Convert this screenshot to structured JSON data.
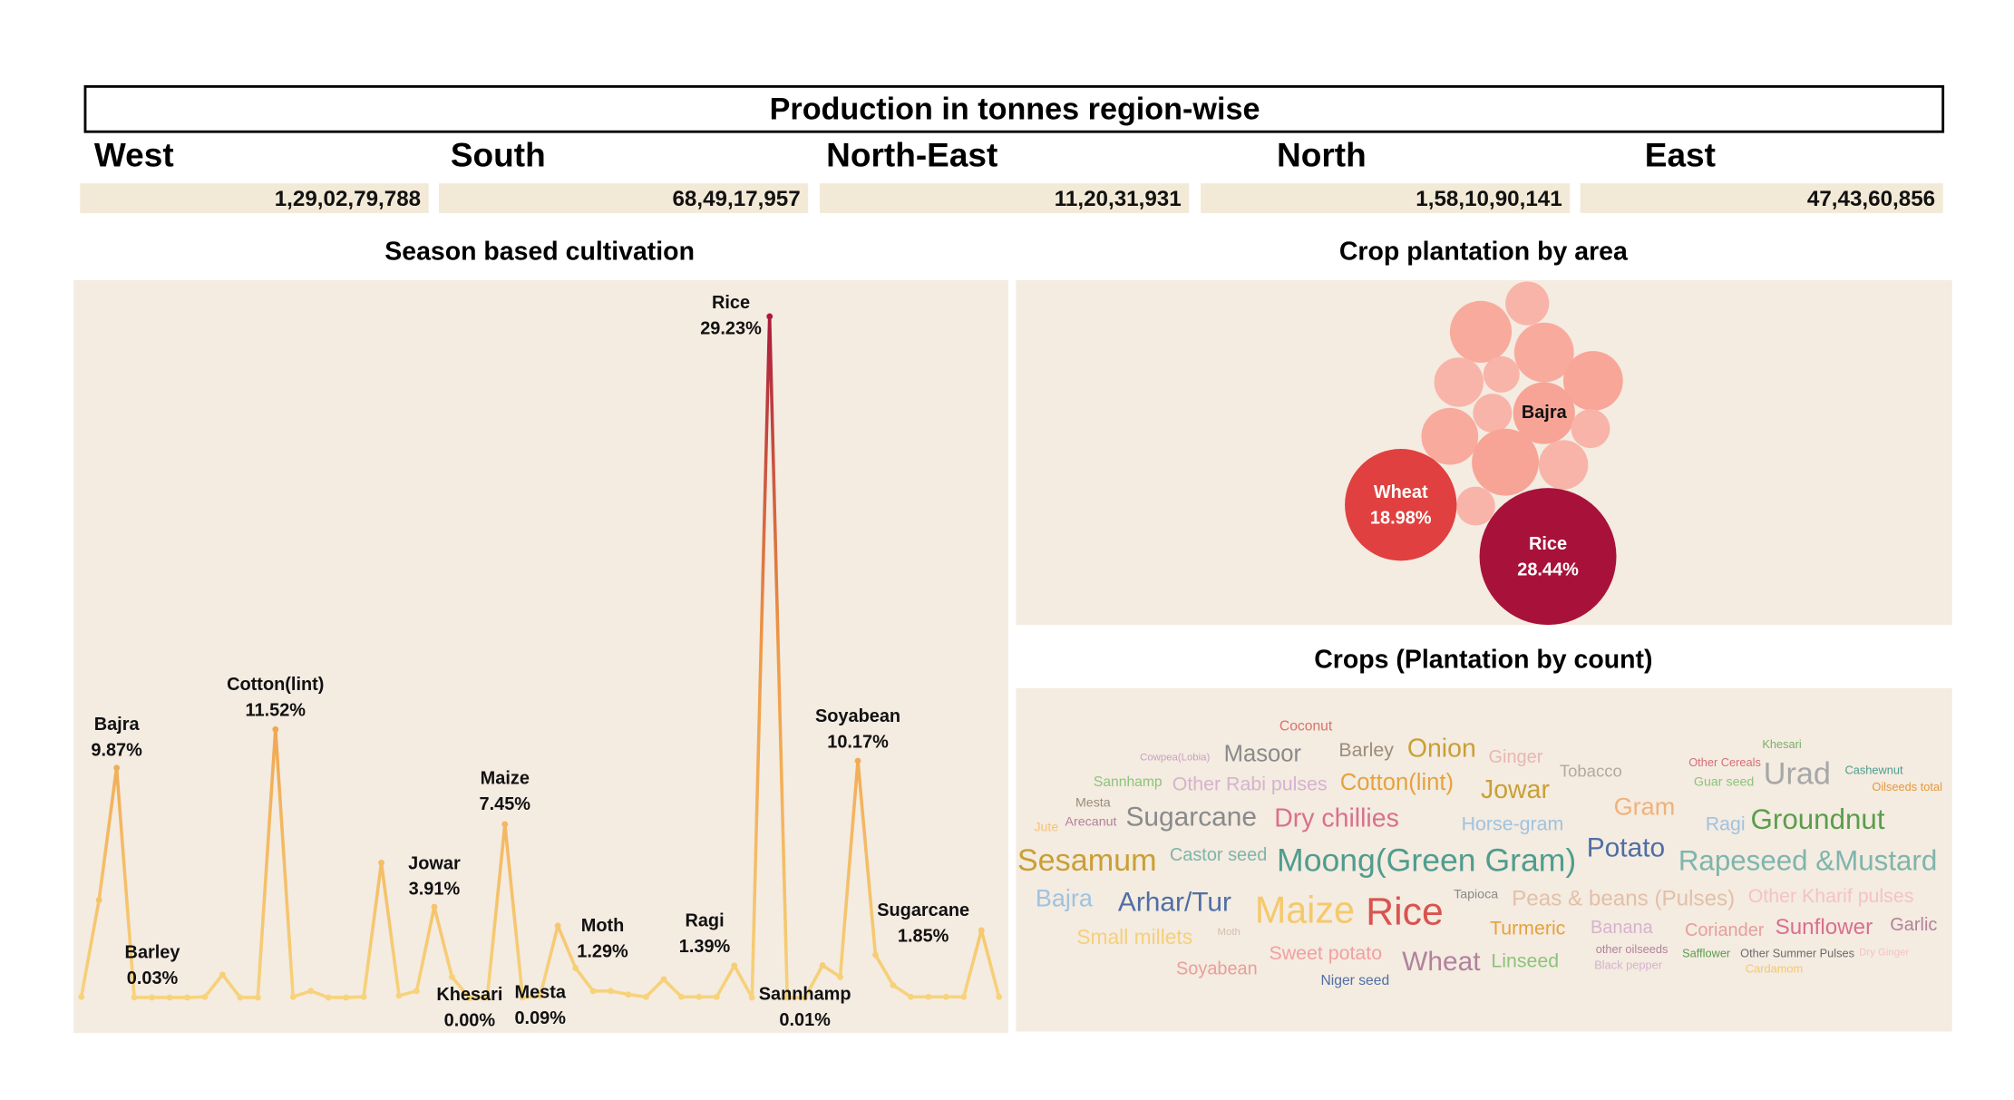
{
  "header": {
    "title": "Production in tonnes region-wise",
    "regions": [
      {
        "name": "West",
        "value": "1,29,02,79,788"
      },
      {
        "name": "South",
        "value": "68,49,17,957"
      },
      {
        "name": "North-East",
        "value": "11,20,31,931"
      },
      {
        "name": "North",
        "value": "1,58,10,90,141"
      },
      {
        "name": "East",
        "value": "47,43,60,856"
      }
    ]
  },
  "chart_data": [
    {
      "type": "line",
      "title": "Season based cultivation",
      "categories": [
        null,
        null,
        "Bajra",
        "Barley",
        null,
        null,
        null,
        null,
        null,
        null,
        null,
        "Cotton(lint)",
        null,
        null,
        null,
        null,
        null,
        null,
        null,
        null,
        "Jowar",
        null,
        "Khesari",
        null,
        "Maize",
        null,
        "Mesta",
        null,
        "Moth",
        null,
        null,
        null,
        null,
        null,
        null,
        null,
        null,
        "Ragi",
        null,
        "Rice",
        null,
        "Sannhamp",
        null,
        null,
        "Soyabean",
        "Sugarcane",
        null,
        null,
        null,
        null,
        null,
        null,
        null
      ],
      "values": [
        0.05,
        4.2,
        9.87,
        0.03,
        0.02,
        0.02,
        0.02,
        0.05,
        1.0,
        0.02,
        0.02,
        11.52,
        0.05,
        0.3,
        0.02,
        0.02,
        0.05,
        5.8,
        0.1,
        0.3,
        3.91,
        0.9,
        0.0,
        0.02,
        7.45,
        0.02,
        0.09,
        3.1,
        1.29,
        0.3,
        0.3,
        0.15,
        0.05,
        0.8,
        0.05,
        0.05,
        0.05,
        1.39,
        0.02,
        29.23,
        0.02,
        0.01,
        1.4,
        0.9,
        10.17,
        1.85,
        0.55,
        0.05,
        0.05,
        0.05,
        0.05,
        2.9,
        0.05
      ],
      "value_labels": [
        null,
        null,
        "9.87%",
        "0.03%",
        null,
        null,
        null,
        null,
        null,
        null,
        null,
        "11.52%",
        null,
        null,
        null,
        null,
        null,
        null,
        null,
        null,
        "3.91%",
        null,
        "0.00%",
        null,
        "7.45%",
        null,
        "0.09%",
        null,
        "1.29%",
        null,
        null,
        null,
        null,
        null,
        null,
        null,
        null,
        "1.39%",
        null,
        "29.23%",
        null,
        "0.01%",
        null,
        null,
        "10.17%",
        "1.85%",
        null,
        null,
        null,
        null,
        null,
        null,
        null
      ],
      "ylim": [
        0,
        30
      ],
      "color_range": [
        "#f7d37b",
        "#ef9a45",
        "#a8123a"
      ]
    },
    {
      "type": "bubble",
      "title": "Crop plantation by area",
      "categories": [
        null,
        null,
        null,
        null,
        null,
        null,
        "Bajra",
        null,
        null,
        null,
        null,
        null,
        null,
        "Wheat",
        "Rice"
      ],
      "values": [
        2.9,
        5.8,
        5.4,
        5.4,
        3.7,
        2.0,
        5.8,
        2.3,
        2.3,
        4.9,
        6.8,
        3.7,
        2.3,
        18.98,
        28.44
      ],
      "value_labels": [
        null,
        null,
        null,
        null,
        null,
        null,
        null,
        null,
        null,
        null,
        null,
        null,
        null,
        "18.98%",
        "28.44%"
      ],
      "colors": [
        "#f8b4a8",
        "#f8aa9d",
        "#f8aa9d",
        "#f8a698",
        "#f8b4a8",
        "#f8b4a8",
        "#f7a496",
        "#f8b4a8",
        "#f8b4a8",
        "#f8aa9d",
        "#f7a496",
        "#f8b4a8",
        "#f8b4a8",
        "#e0403f",
        "#a8123a"
      ]
    },
    {
      "type": "wordcloud",
      "title": "Crops (Plantation by count)",
      "words": [
        {
          "text": "Coconut",
          "value": 110,
          "color": "#d9736b"
        },
        {
          "text": "Cowpea(Lobia)",
          "value": 80,
          "color": "#c7a3c0"
        },
        {
          "text": "Masoor",
          "value": 180,
          "color": "#8a8a8a"
        },
        {
          "text": "Barley",
          "value": 150,
          "color": "#9c8d7a"
        },
        {
          "text": "Onion",
          "value": 200,
          "color": "#c9a035"
        },
        {
          "text": "Ginger",
          "value": 140,
          "color": "#e7b8b0"
        },
        {
          "text": "Tobacco",
          "value": 130,
          "color": "#b3a9a0"
        },
        {
          "text": "Other Cereals",
          "value": 90,
          "color": "#d46f78"
        },
        {
          "text": "Khesari",
          "value": 90,
          "color": "#7bb069"
        },
        {
          "text": "Cashewnut",
          "value": 90,
          "color": "#4f9d8e"
        },
        {
          "text": "Urad",
          "value": 240,
          "color": "#a7a7a7"
        },
        {
          "text": "Guar seed",
          "value": 100,
          "color": "#8cc47a"
        },
        {
          "text": "Oilseeds total",
          "value": 90,
          "color": "#e49a3b"
        },
        {
          "text": "Sannhamp",
          "value": 110,
          "color": "#8cc47a"
        },
        {
          "text": "Other Rabi pulses",
          "value": 150,
          "color": "#d5b3ce"
        },
        {
          "text": "Cotton(lint)",
          "value": 180,
          "color": "#e6a23c"
        },
        {
          "text": "Jowar",
          "value": 200,
          "color": "#c9a035"
        },
        {
          "text": "Mesta",
          "value": 100,
          "color": "#9c8d7a"
        },
        {
          "text": "Gram",
          "value": 190,
          "color": "#f0b27a"
        },
        {
          "text": "Jute",
          "value": 100,
          "color": "#f5c27a"
        },
        {
          "text": "Arecanut",
          "value": 100,
          "color": "#b1829c"
        },
        {
          "text": "Sugarcane",
          "value": 210,
          "color": "#8a8a8a"
        },
        {
          "text": "Dry chillies",
          "value": 200,
          "color": "#d9708c"
        },
        {
          "text": "Horse-gram",
          "value": 150,
          "color": "#9fc3e0"
        },
        {
          "text": "Ragi",
          "value": 150,
          "color": "#9fc3e0"
        },
        {
          "text": "Groundnut",
          "value": 220,
          "color": "#5a9e4b"
        },
        {
          "text": "Sesamum",
          "value": 240,
          "color": "#c9a035"
        },
        {
          "text": "Castor seed",
          "value": 140,
          "color": "#7fb5ad"
        },
        {
          "text": "Moong(Green Gram)",
          "value": 250,
          "color": "#4f9d8e"
        },
        {
          "text": "Potato",
          "value": 210,
          "color": "#4e6fa3"
        },
        {
          "text": "Rapeseed &Mustard",
          "value": 220,
          "color": "#7fb5ad"
        },
        {
          "text": "Bajra",
          "value": 190,
          "color": "#9fc3e0"
        },
        {
          "text": "Arhar/Tur",
          "value": 210,
          "color": "#4e6fa3"
        },
        {
          "text": "Maize",
          "value": 290,
          "color": "#f5c96a"
        },
        {
          "text": "Rice",
          "value": 300,
          "color": "#d9534f"
        },
        {
          "text": "Tapioca",
          "value": 100,
          "color": "#8a8a8a"
        },
        {
          "text": "Peas & beans (Pulses)",
          "value": 170,
          "color": "#e2c0a8"
        },
        {
          "text": "Other Kharif pulses",
          "value": 150,
          "color": "#f4c3c4"
        },
        {
          "text": "Small millets",
          "value": 160,
          "color": "#f5d07a"
        },
        {
          "text": "Moth",
          "value": 80,
          "color": "#d4c0b0"
        },
        {
          "text": "Turmeric",
          "value": 150,
          "color": "#e6a23c"
        },
        {
          "text": "Banana",
          "value": 140,
          "color": "#d5b3ce"
        },
        {
          "text": "Coriander",
          "value": 140,
          "color": "#e89f9b"
        },
        {
          "text": "Sunflower",
          "value": 170,
          "color": "#d9708c"
        },
        {
          "text": "Garlic",
          "value": 140,
          "color": "#b1829c"
        },
        {
          "text": "other oilseeds",
          "value": 90,
          "color": "#b1829c"
        },
        {
          "text": "Safflower",
          "value": 90,
          "color": "#5a9e4b"
        },
        {
          "text": "Other Summer Pulses",
          "value": 90,
          "color": "#6b6b6b"
        },
        {
          "text": "Dry Ginger",
          "value": 80,
          "color": "#f4c3c4"
        },
        {
          "text": "Soyabean",
          "value": 140,
          "color": "#e89f9b"
        },
        {
          "text": "Sweet potato",
          "value": 150,
          "color": "#f1a0a0"
        },
        {
          "text": "Wheat",
          "value": 210,
          "color": "#b1829c"
        },
        {
          "text": "Linseed",
          "value": 150,
          "color": "#8cc47a"
        },
        {
          "text": "Black pepper",
          "value": 90,
          "color": "#d5b3ce"
        },
        {
          "text": "Cardamom",
          "value": 90,
          "color": "#f5c96a"
        },
        {
          "text": "Niger seed",
          "value": 110,
          "color": "#4e6fa3"
        }
      ]
    }
  ]
}
